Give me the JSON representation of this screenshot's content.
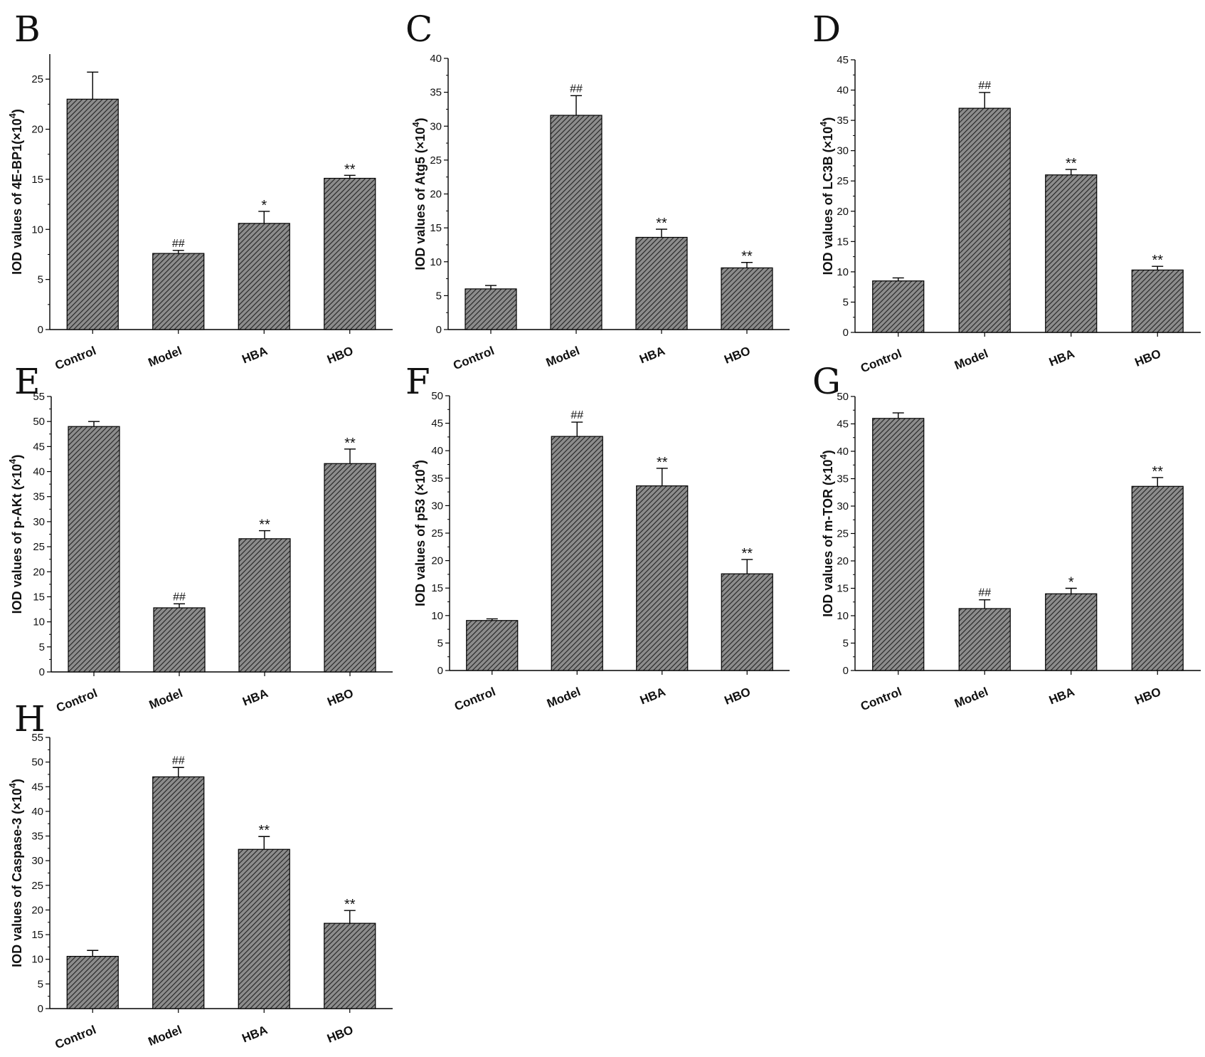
{
  "chart_data": [
    {
      "panel": "B",
      "type": "bar",
      "categories": [
        "Control",
        "Model",
        "HBA",
        "HBO"
      ],
      "values": [
        23.0,
        7.6,
        10.6,
        15.1
      ],
      "errors": [
        2.7,
        0.3,
        1.2,
        0.3
      ],
      "annotations": [
        "",
        "##",
        "*",
        "**"
      ],
      "ylabel": "IOD values of 4E-BP1(×10",
      "ylabel_sup": "4",
      "ylabel_suffix": ")",
      "ylim": [
        0,
        27.5
      ],
      "yticks": [
        0,
        5,
        10,
        15,
        20,
        25
      ]
    },
    {
      "panel": "C",
      "type": "bar",
      "categories": [
        "Control",
        "Model",
        "HBA",
        "HBO"
      ],
      "values": [
        6.0,
        31.6,
        13.6,
        9.1
      ],
      "errors": [
        0.5,
        2.9,
        1.2,
        0.8
      ],
      "annotations": [
        "",
        "##",
        "**",
        "**"
      ],
      "ylabel": "IOD values of Atg5 (×10",
      "ylabel_sup": "4",
      "ylabel_suffix": ")",
      "ylim": [
        0,
        40
      ],
      "yticks": [
        0,
        5,
        10,
        15,
        20,
        25,
        30,
        35,
        40
      ]
    },
    {
      "panel": "D",
      "type": "bar",
      "categories": [
        "Control",
        "Model",
        "HBA",
        "HBO"
      ],
      "values": [
        8.5,
        37.0,
        26.0,
        10.3
      ],
      "errors": [
        0.5,
        2.6,
        0.9,
        0.6
      ],
      "annotations": [
        "",
        "##",
        "**",
        "**"
      ],
      "ylabel": "IOD values of LC3B (×10",
      "ylabel_sup": "4",
      "ylabel_suffix": ")",
      "ylim": [
        0,
        45
      ],
      "yticks": [
        0,
        5,
        10,
        15,
        20,
        25,
        30,
        35,
        40,
        45
      ]
    },
    {
      "panel": "E",
      "type": "bar",
      "categories": [
        "Control",
        "Model",
        "HBA",
        "HBO"
      ],
      "values": [
        49.0,
        12.8,
        26.6,
        41.6
      ],
      "errors": [
        1.0,
        0.8,
        1.6,
        2.9
      ],
      "annotations": [
        "",
        "##",
        "**",
        "**"
      ],
      "ylabel": "IOD values of p-AKt (×10",
      "ylabel_sup": "4",
      "ylabel_suffix": ")",
      "ylim": [
        0,
        55
      ],
      "yticks": [
        0,
        5,
        10,
        15,
        20,
        25,
        30,
        35,
        40,
        45,
        50,
        55
      ]
    },
    {
      "panel": "F",
      "type": "bar",
      "categories": [
        "Control",
        "Model",
        "HBA",
        "HBO"
      ],
      "values": [
        9.1,
        42.6,
        33.6,
        17.6
      ],
      "errors": [
        0.3,
        2.6,
        3.2,
        2.6
      ],
      "annotations": [
        "",
        "##",
        "**",
        "**"
      ],
      "ylabel": "IOD values of p53 (×10",
      "ylabel_sup": "4",
      "ylabel_suffix": ")",
      "ylim": [
        0,
        50
      ],
      "yticks": [
        0,
        5,
        10,
        15,
        20,
        25,
        30,
        35,
        40,
        45,
        50
      ]
    },
    {
      "panel": "G",
      "type": "bar",
      "categories": [
        "Control",
        "Model",
        "HBA",
        "HBO"
      ],
      "values": [
        46.0,
        11.3,
        14.0,
        33.6
      ],
      "errors": [
        1.0,
        1.6,
        1.0,
        1.6
      ],
      "annotations": [
        "",
        "##",
        "*",
        "**"
      ],
      "ylabel": "IOD values of m-TOR (×10",
      "ylabel_sup": "4",
      "ylabel_suffix": ")",
      "ylim": [
        0,
        50
      ],
      "yticks": [
        0,
        5,
        10,
        15,
        20,
        25,
        30,
        35,
        40,
        45,
        50
      ]
    },
    {
      "panel": "H",
      "type": "bar",
      "categories": [
        "Control",
        "Model",
        "HBA",
        "HBO"
      ],
      "values": [
        10.6,
        47.0,
        32.3,
        17.3
      ],
      "errors": [
        1.2,
        1.9,
        2.6,
        2.6
      ],
      "annotations": [
        "",
        "##",
        "**",
        "**"
      ],
      "ylabel": "IOD values of Caspase-3 (×10",
      "ylabel_sup": "4",
      "ylabel_suffix": ")",
      "ylim": [
        0,
        55
      ],
      "yticks": [
        0,
        5,
        10,
        15,
        20,
        25,
        30,
        35,
        40,
        45,
        50,
        55
      ]
    }
  ],
  "style": {
    "bar_fill": "#8c8c8c",
    "hatch_stroke": "#222222",
    "axis_color": "#000000"
  }
}
